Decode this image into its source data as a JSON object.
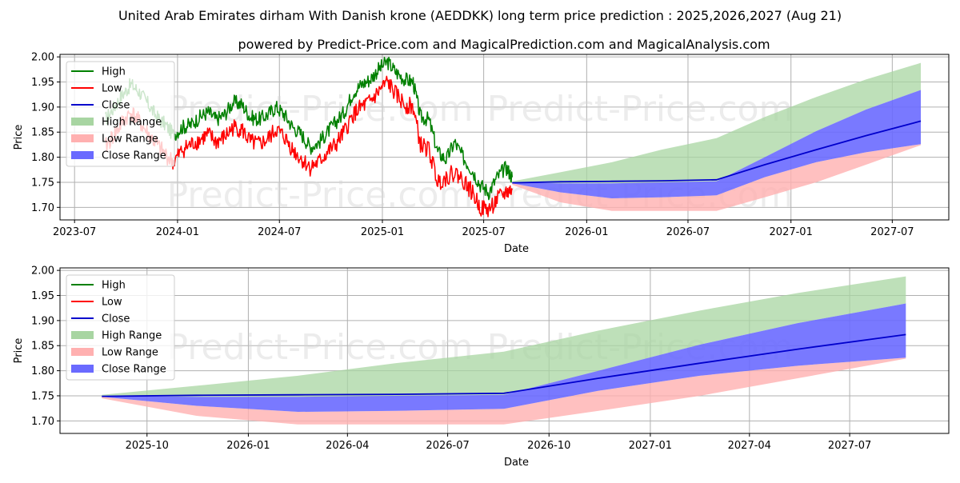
{
  "header": {
    "title": "United Arab Emirates dirham With Danish krone (AEDDKK) long term price prediction : 2025,2026,2027 (Aug 21)",
    "subtitle": "powered by Predict-Price.com and MagicalPrediction.com and MagicalAnalysis.com"
  },
  "watermark": "Predict-Price.com",
  "colors": {
    "high": "#008000",
    "low": "#ff0000",
    "close": "#0000cc",
    "high_range": "#a8d5a2",
    "low_range": "#ffb0b0",
    "close_range": "#6a6aff"
  },
  "legend": {
    "high": "High",
    "low": "Low",
    "close": "Close",
    "high_range": "High Range",
    "low_range": "Low Range",
    "close_range": "Close Range"
  },
  "chart_data": [
    {
      "type": "line",
      "xlabel": "Date",
      "ylabel": "Price",
      "xlim": [
        "2023-06-05",
        "2027-10-10"
      ],
      "ylim": [
        1.675,
        2.005
      ],
      "legend_position": "top-left",
      "grid": true,
      "xticks": [
        {
          "date": "2023-07-01",
          "label": "2023-07"
        },
        {
          "date": "2024-01-01",
          "label": "2024-01"
        },
        {
          "date": "2024-07-01",
          "label": "2024-07"
        },
        {
          "date": "2025-01-01",
          "label": "2025-01"
        },
        {
          "date": "2025-07-01",
          "label": "2025-07"
        },
        {
          "date": "2026-01-01",
          "label": "2026-01"
        },
        {
          "date": "2026-07-01",
          "label": "2026-07"
        },
        {
          "date": "2027-01-01",
          "label": "2027-01"
        },
        {
          "date": "2027-07-01",
          "label": "2027-07"
        }
      ],
      "yticks": [
        1.7,
        1.75,
        1.8,
        1.85,
        1.9,
        1.95,
        2.0
      ],
      "history": {
        "dates": [
          "2023-08-25",
          "2023-09-10",
          "2023-09-25",
          "2023-10-10",
          "2023-10-25",
          "2023-11-10",
          "2023-11-25",
          "2023-12-10",
          "2023-12-25",
          "2024-01-10",
          "2024-01-25",
          "2024-02-10",
          "2024-02-25",
          "2024-03-10",
          "2024-03-25",
          "2024-04-10",
          "2024-04-25",
          "2024-05-10",
          "2024-05-25",
          "2024-06-10",
          "2024-06-25",
          "2024-07-10",
          "2024-07-25",
          "2024-08-10",
          "2024-08-25",
          "2024-09-10",
          "2024-09-25",
          "2024-10-10",
          "2024-10-25",
          "2024-11-10",
          "2024-11-25",
          "2024-12-10",
          "2024-12-25",
          "2025-01-10",
          "2025-01-25",
          "2025-02-10",
          "2025-02-25",
          "2025-03-10",
          "2025-03-25",
          "2025-04-10",
          "2025-04-25",
          "2025-05-10",
          "2025-05-25",
          "2025-06-10",
          "2025-06-25",
          "2025-07-10",
          "2025-07-25",
          "2025-08-10",
          "2025-08-21"
        ],
        "high": [
          1.875,
          1.9,
          1.925,
          1.945,
          1.93,
          1.905,
          1.88,
          1.865,
          1.845,
          1.86,
          1.865,
          1.88,
          1.89,
          1.875,
          1.885,
          1.91,
          1.905,
          1.88,
          1.875,
          1.885,
          1.9,
          1.885,
          1.86,
          1.845,
          1.82,
          1.83,
          1.85,
          1.87,
          1.89,
          1.93,
          1.945,
          1.955,
          1.975,
          1.99,
          1.97,
          1.955,
          1.95,
          1.88,
          1.875,
          1.81,
          1.795,
          1.83,
          1.8,
          1.775,
          1.745,
          1.73,
          1.76,
          1.78,
          1.76
        ],
        "low": [
          1.82,
          1.845,
          1.87,
          1.89,
          1.87,
          1.845,
          1.825,
          1.805,
          1.79,
          1.815,
          1.825,
          1.835,
          1.845,
          1.83,
          1.84,
          1.86,
          1.855,
          1.83,
          1.825,
          1.835,
          1.855,
          1.84,
          1.815,
          1.795,
          1.78,
          1.79,
          1.81,
          1.825,
          1.85,
          1.885,
          1.9,
          1.91,
          1.93,
          1.95,
          1.925,
          1.905,
          1.9,
          1.825,
          1.815,
          1.75,
          1.76,
          1.77,
          1.755,
          1.73,
          1.7,
          1.695,
          1.715,
          1.73,
          1.735
        ]
      },
      "forecast": {
        "dates": [
          "2025-08-21",
          "2025-11-15",
          "2026-02-15",
          "2026-05-15",
          "2026-08-21",
          "2026-11-15",
          "2027-02-15",
          "2027-05-15",
          "2027-08-21"
        ],
        "close": [
          1.749,
          1.751,
          1.752,
          1.753,
          1.755,
          1.785,
          1.815,
          1.843,
          1.872
        ],
        "high_upper": [
          1.752,
          1.77,
          1.79,
          1.815,
          1.838,
          1.88,
          1.92,
          1.955,
          1.988
        ],
        "close_upper": [
          1.75,
          1.748,
          1.748,
          1.75,
          1.752,
          1.8,
          1.852,
          1.895,
          1.934
        ],
        "close_lower": [
          1.748,
          1.73,
          1.718,
          1.72,
          1.724,
          1.76,
          1.79,
          1.81,
          1.826
        ],
        "low_lower": [
          1.745,
          1.71,
          1.693,
          1.693,
          1.693,
          1.72,
          1.75,
          1.785,
          1.824
        ]
      }
    },
    {
      "type": "line",
      "xlabel": "Date",
      "ylabel": "Price",
      "xlim": [
        "2025-07-14",
        "2027-09-29"
      ],
      "ylim": [
        1.675,
        2.005
      ],
      "legend_position": "top-left",
      "grid": true,
      "xticks": [
        {
          "date": "2025-10-01",
          "label": "2025-10"
        },
        {
          "date": "2026-01-01",
          "label": "2026-01"
        },
        {
          "date": "2026-04-01",
          "label": "2026-04"
        },
        {
          "date": "2026-07-01",
          "label": "2026-07"
        },
        {
          "date": "2026-10-01",
          "label": "2026-10"
        },
        {
          "date": "2027-01-01",
          "label": "2027-01"
        },
        {
          "date": "2027-04-01",
          "label": "2027-04"
        },
        {
          "date": "2027-07-01",
          "label": "2027-07"
        }
      ],
      "yticks": [
        1.7,
        1.75,
        1.8,
        1.85,
        1.9,
        1.95,
        2.0
      ],
      "forecast": {
        "dates": [
          "2025-08-21",
          "2025-11-15",
          "2026-02-15",
          "2026-05-15",
          "2026-08-21",
          "2026-11-15",
          "2027-02-15",
          "2027-05-15",
          "2027-08-21"
        ],
        "close": [
          1.749,
          1.751,
          1.752,
          1.753,
          1.755,
          1.785,
          1.815,
          1.843,
          1.872
        ],
        "high_upper": [
          1.752,
          1.77,
          1.79,
          1.815,
          1.838,
          1.88,
          1.92,
          1.955,
          1.988
        ],
        "close_upper": [
          1.75,
          1.748,
          1.748,
          1.75,
          1.752,
          1.8,
          1.852,
          1.895,
          1.934
        ],
        "close_lower": [
          1.748,
          1.73,
          1.718,
          1.72,
          1.724,
          1.76,
          1.79,
          1.81,
          1.826
        ],
        "low_lower": [
          1.745,
          1.71,
          1.693,
          1.693,
          1.693,
          1.72,
          1.75,
          1.785,
          1.824
        ]
      }
    }
  ]
}
